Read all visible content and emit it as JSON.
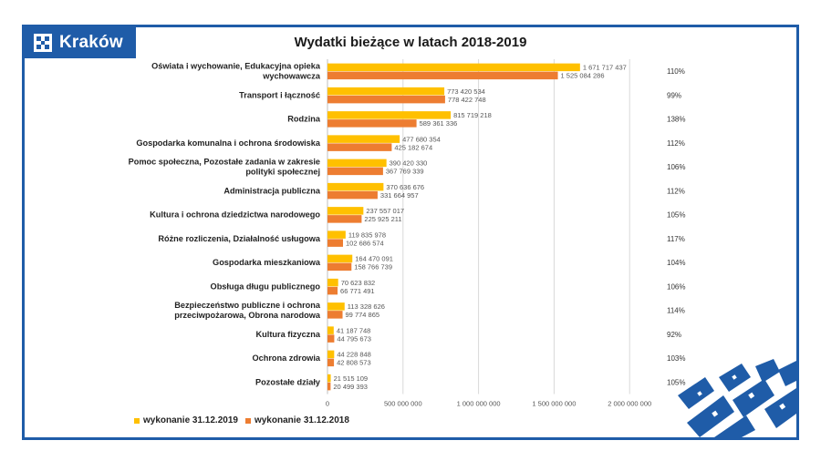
{
  "logo": {
    "text": "Kraków"
  },
  "colors": {
    "brand": "#1f5ca8",
    "series2019": "#ffc000",
    "series2018": "#ed7d31",
    "grid": "#d9d9d9"
  },
  "chart_data": {
    "type": "bar",
    "orientation": "horizontal",
    "title": "Wydatki bieżące w latach 2018-2019",
    "xlim": [
      0,
      2500000000
    ],
    "ticks": [
      0,
      500000000,
      1000000000,
      1500000000,
      2000000000
    ],
    "tick_labels": [
      "0",
      "500 000 000",
      "1 000 000 000",
      "1 500 000 000",
      "2 000 000 000"
    ],
    "categories": [
      [
        "Oświata i wychowanie, Edukacyjna opieka",
        "wychowawcza"
      ],
      [
        "Transport i łączność"
      ],
      [
        "Rodzina"
      ],
      [
        "Gospodarka komunalna i ochrona środowiska"
      ],
      [
        "Pomoc społeczna, Pozostałe zadania w zakresie",
        "polityki społecznej"
      ],
      [
        "Administracja publiczna"
      ],
      [
        "Kultura i ochrona dziedzictwa narodowego"
      ],
      [
        "Różne rozliczenia, Działalność usługowa"
      ],
      [
        "Gospodarka mieszkaniowa"
      ],
      [
        "Obsługa długu publicznego"
      ],
      [
        "Bezpieczeństwo publiczne i ochrona",
        "przeciwpożarowa, Obrona narodowa"
      ],
      [
        "Kultura fizyczna"
      ],
      [
        "Ochrona zdrowia"
      ],
      [
        "Pozostałe działy"
      ]
    ],
    "series": [
      {
        "name": "wykonanie 31.12.2019",
        "values": [
          1671717437,
          773420534,
          815719218,
          477680354,
          390420330,
          370636676,
          237557017,
          119835978,
          164470091,
          70623832,
          113328626,
          41187748,
          44228848,
          21515109
        ],
        "labels": [
          "1 671 717 437",
          "773 420 534",
          "815 719 218",
          "477 680 354",
          "390 420 330",
          "370 636 676",
          "237 557 017",
          "119 835 978",
          "164 470 091",
          "70 623 832",
          "113 328 626",
          "41 187 748",
          "44 228 848",
          "21 515 109"
        ]
      },
      {
        "name": "wykonanie 31.12.2018",
        "values": [
          1525084286,
          778422748,
          589361336,
          425182674,
          367769339,
          331664957,
          225925211,
          102686574,
          158766739,
          66771491,
          99774865,
          44795673,
          42808573,
          20499393
        ],
        "labels": [
          "1 525 084 286",
          "778 422 748",
          "589 361 336",
          "425 182 674",
          "367 769 339",
          "331 664 957",
          "225 925 211",
          "102 686 574",
          "158 766 739",
          "66 771 491",
          "99 774 865",
          "44 795 673",
          "42 808 573",
          "20 499 393"
        ]
      }
    ],
    "percentages": [
      "110%",
      "99%",
      "138%",
      "112%",
      "106%",
      "112%",
      "105%",
      "117%",
      "104%",
      "106%",
      "114%",
      "92%",
      "103%",
      "105%"
    ]
  }
}
